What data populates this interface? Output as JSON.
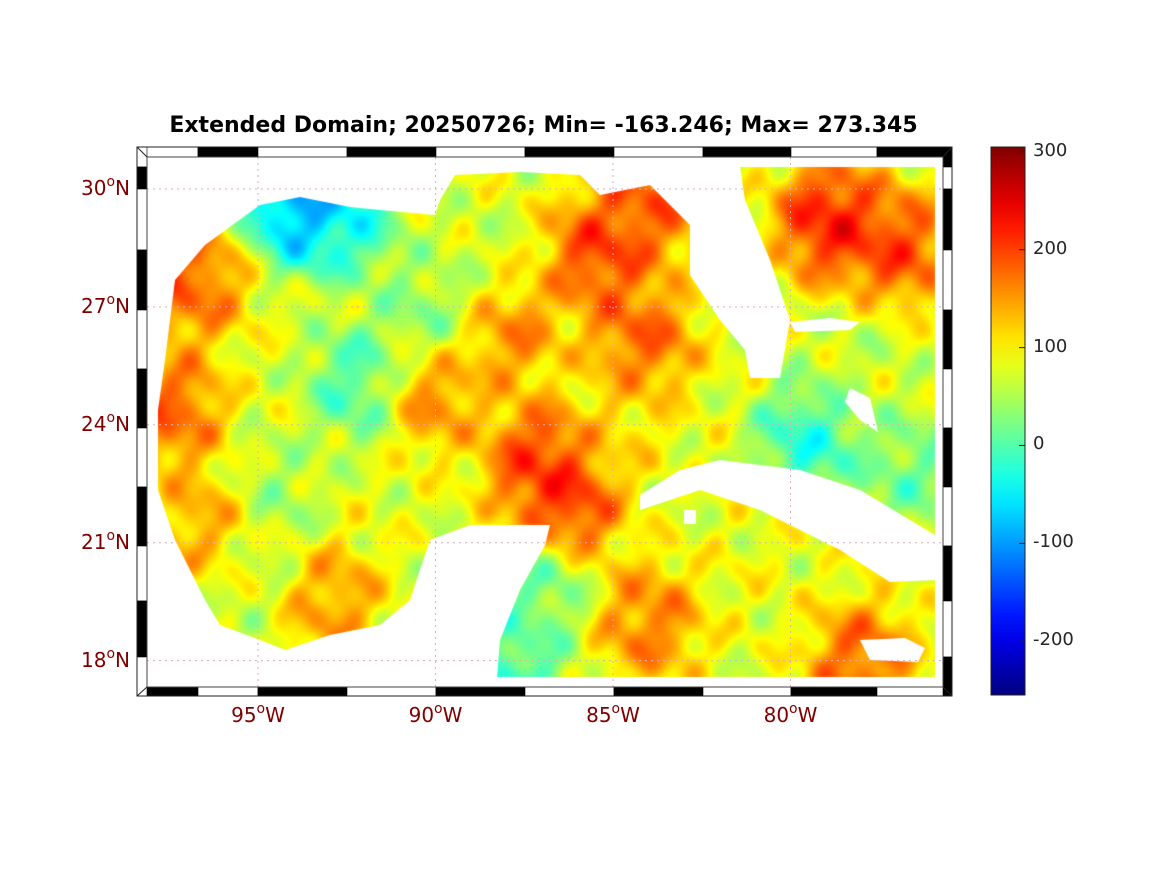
{
  "chart_data": {
    "type": "heatmap",
    "title": "Extended Domain; 20250726; Min= -163.246; Max= 273.345",
    "degree_symbol": "o",
    "lon_ticks": [
      {
        "value": -95,
        "deg": "95",
        "hemi": "W"
      },
      {
        "value": -90,
        "deg": "90",
        "hemi": "W"
      },
      {
        "value": -85,
        "deg": "85",
        "hemi": "W"
      },
      {
        "value": -80,
        "deg": "80",
        "hemi": "W"
      }
    ],
    "lat_ticks": [
      {
        "value": 30,
        "deg": "30",
        "hemi": "N"
      },
      {
        "value": 27,
        "deg": "27",
        "hemi": "N"
      },
      {
        "value": 24,
        "deg": "24",
        "hemi": "N"
      },
      {
        "value": 21,
        "deg": "21",
        "hemi": "N"
      },
      {
        "value": 18,
        "deg": "18",
        "hemi": "N"
      }
    ],
    "lon_range": [
      -98.1,
      -75.7
    ],
    "lat_range": [
      17.2,
      30.8
    ],
    "colorbar": {
      "colormap": "jet",
      "range": [
        -255,
        305
      ],
      "ticks": [
        {
          "value": 300,
          "label": "300"
        },
        {
          "value": 200,
          "label": "200"
        },
        {
          "value": 100,
          "label": "100"
        },
        {
          "value": 0,
          "label": "0"
        },
        {
          "value": -100,
          "label": "-100"
        },
        {
          "value": -200,
          "label": "-200"
        }
      ]
    },
    "min": -163.246,
    "max": 273.345,
    "field_base_value": 80,
    "field_features": [
      {
        "lon": -85.4,
        "lat": 28.4,
        "value": 235
      },
      {
        "lon": -84.0,
        "lat": 29.6,
        "value": 215
      },
      {
        "lon": -78.9,
        "lat": 29.2,
        "value": 265
      },
      {
        "lon": -77.0,
        "lat": 28.5,
        "value": 230
      },
      {
        "lon": -87.1,
        "lat": 23.1,
        "value": 235
      },
      {
        "lon": -86.3,
        "lat": 22.0,
        "value": 240
      },
      {
        "lon": -93.8,
        "lat": 29.6,
        "value": -150
      },
      {
        "lon": -92.6,
        "lat": 29.3,
        "value": -60
      },
      {
        "lon": -92.1,
        "lat": 25.1,
        "value": -30
      },
      {
        "lon": -90.2,
        "lat": 26.7,
        "value": 10
      },
      {
        "lon": -90.2,
        "lat": 24.9,
        "value": 190
      },
      {
        "lon": -96.9,
        "lat": 27.6,
        "value": 210
      },
      {
        "lon": -97.5,
        "lat": 24.4,
        "value": 210
      },
      {
        "lon": -96.3,
        "lat": 21.5,
        "value": 170
      },
      {
        "lon": -94.7,
        "lat": 22.1,
        "value": 30
      },
      {
        "lon": -93.0,
        "lat": 19.5,
        "value": 170
      },
      {
        "lon": -95.2,
        "lat": 20.0,
        "value": 60
      },
      {
        "lon": -84.2,
        "lat": 26.2,
        "value": 210
      },
      {
        "lon": -84.8,
        "lat": 24.1,
        "value": 120
      },
      {
        "lon": -79.5,
        "lat": 23.6,
        "value": -50
      },
      {
        "lon": -76.6,
        "lat": 22.8,
        "value": 0
      },
      {
        "lon": -78.0,
        "lat": 25.6,
        "value": 60
      },
      {
        "lon": -84.0,
        "lat": 19.0,
        "value": 190
      },
      {
        "lon": -78.0,
        "lat": 18.0,
        "value": 210
      },
      {
        "lon": -81.0,
        "lat": 20.2,
        "value": 90
      },
      {
        "lon": -87.1,
        "lat": 19.8,
        "value": 0
      },
      {
        "lon": -87.9,
        "lat": 17.6,
        "value": -40
      },
      {
        "lon": -88.8,
        "lat": 28.0,
        "value": 60
      },
      {
        "lon": -88.0,
        "lat": 26.5,
        "value": 190
      }
    ],
    "grid": true
  }
}
